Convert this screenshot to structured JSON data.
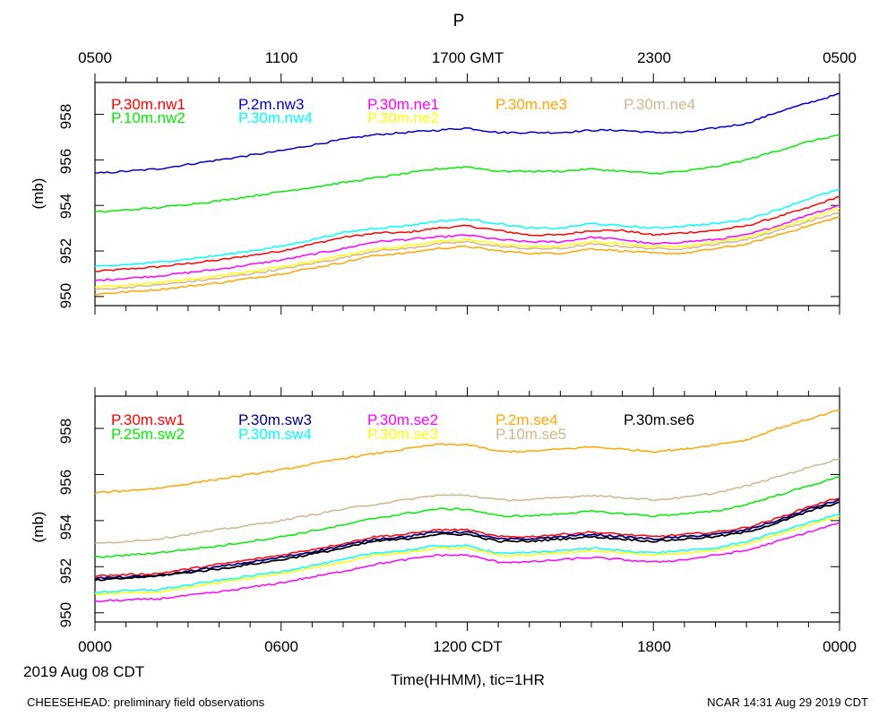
{
  "chart_data": {
    "type": "line",
    "title": "P",
    "top_time_axis": {
      "ticks": [
        "0500",
        "1100",
        "1700 GMT",
        "2300",
        "0500"
      ]
    },
    "bottom_time_axis": {
      "ticks": [
        "0000",
        "0600",
        "1200 CDT",
        "1800",
        "0000"
      ],
      "xlabel": "Time(HHMM), tic=1HR",
      "date_label": "2019 Aug 08 CDT"
    },
    "x_range_hours": [
      0,
      24
    ],
    "footer_left": "CHEESEHEAD: preliminary field observations",
    "footer_right": "NCAR 14:31 Aug 29 2019 CDT",
    "panels": [
      {
        "name": "top",
        "ylabel": "(mb)",
        "ylim": [
          949.6,
          959.4
        ],
        "yticks": [
          "950",
          "952",
          "954",
          "956",
          "958"
        ],
        "series": [
          {
            "name": "P.30m.nw1",
            "color": "#ff0000",
            "x": [
              0,
              2,
              4,
              6,
              8,
              9.2,
              10,
              11,
              12,
              13,
              14,
              15,
              16,
              17,
              18,
              19,
              20,
              21,
              22,
              23,
              24
            ],
            "values": [
              951.1,
              951.3,
              951.6,
              952.0,
              952.6,
              952.8,
              952.8,
              953.0,
              953.1,
              952.9,
              952.7,
              952.7,
              952.9,
              952.9,
              952.7,
              952.8,
              952.9,
              953.1,
              953.5,
              953.9,
              954.4
            ]
          },
          {
            "name": "P.2m.nw3",
            "color": "#0000cc",
            "x": [
              0,
              2,
              4,
              6,
              8,
              9,
              10,
              11,
              12,
              13,
              14,
              15,
              16,
              17,
              18,
              19,
              20,
              21,
              22,
              23,
              24
            ],
            "values": [
              955.4,
              955.6,
              956.0,
              956.4,
              956.9,
              957.1,
              957.2,
              957.3,
              957.4,
              957.2,
              957.2,
              957.2,
              957.3,
              957.3,
              957.2,
              957.2,
              957.4,
              957.6,
              958.1,
              958.5,
              958.9
            ]
          },
          {
            "name": "P.30m.ne1",
            "color": "#ff00ff",
            "x": [
              0,
              2,
              4,
              6,
              8,
              9,
              10,
              11,
              12,
              13,
              14,
              15,
              16,
              17,
              18,
              19,
              20,
              21,
              22,
              23,
              24
            ],
            "values": [
              950.7,
              950.9,
              951.2,
              951.6,
              952.1,
              952.4,
              952.5,
              952.6,
              952.7,
              952.5,
              952.4,
              952.4,
              952.6,
              952.5,
              952.3,
              952.4,
              952.5,
              952.7,
              953.1,
              953.6,
              954.0
            ]
          },
          {
            "name": "P.30m.ne3",
            "color": "#ffa500",
            "x": [
              0,
              2,
              4,
              6,
              8,
              9,
              10,
              11,
              12,
              13,
              14,
              15,
              16,
              17,
              18,
              19,
              20,
              21,
              22,
              23,
              24
            ],
            "values": [
              950.1,
              950.3,
              950.6,
              951.0,
              951.5,
              951.8,
              951.9,
              952.1,
              952.2,
              952.0,
              951.9,
              951.9,
              952.1,
              952.0,
              951.9,
              951.9,
              952.1,
              952.3,
              952.7,
              953.1,
              953.5
            ]
          },
          {
            "name": "P.30m.ne4",
            "color": "#d2b48c",
            "x": [
              0,
              2,
              4,
              6,
              8,
              9,
              10,
              11,
              12,
              13,
              14,
              15,
              16,
              17,
              18,
              19,
              20,
              21,
              22,
              23,
              24
            ],
            "values": [
              950.3,
              950.5,
              950.8,
              951.2,
              951.7,
              952.0,
              952.1,
              952.3,
              952.4,
              952.2,
              952.1,
              952.1,
              952.3,
              952.2,
              952.1,
              952.1,
              952.3,
              952.5,
              952.9,
              953.3,
              953.7
            ]
          },
          {
            "name": "P.10m.nw2",
            "color": "#00ee00",
            "x": [
              0,
              2,
              4,
              6,
              8,
              9,
              10,
              11,
              12,
              13,
              14,
              15,
              16,
              17,
              18,
              19,
              20,
              21,
              22,
              23,
              24
            ],
            "values": [
              953.7,
              953.9,
              954.2,
              954.6,
              955.0,
              955.2,
              955.4,
              955.6,
              955.7,
              955.5,
              955.5,
              955.5,
              955.6,
              955.5,
              955.4,
              955.5,
              955.7,
              956.0,
              956.4,
              956.8,
              957.1
            ]
          },
          {
            "name": "P.30m.nw4",
            "color": "#00ffff",
            "x": [
              0,
              2,
              4,
              6,
              8,
              9,
              10,
              11,
              12,
              13,
              14,
              15,
              16,
              17,
              18,
              19,
              20,
              21,
              22,
              23,
              24
            ],
            "values": [
              951.3,
              951.5,
              951.8,
              952.2,
              952.8,
              953.0,
              953.1,
              953.3,
              953.4,
              953.2,
              953.0,
              953.0,
              953.2,
              953.1,
              953.0,
              953.1,
              953.2,
              953.4,
              953.8,
              954.3,
              954.7
            ]
          },
          {
            "name": "P.30m.ne2",
            "color": "#ffff00",
            "x": [
              0,
              2,
              4,
              6,
              8,
              9,
              10,
              11,
              12,
              13,
              14,
              15,
              16,
              17,
              18,
              19,
              20,
              21,
              22,
              23,
              24
            ],
            "values": [
              950.4,
              950.6,
              950.9,
              951.3,
              951.8,
              952.1,
              952.2,
              952.4,
              952.5,
              952.3,
              952.2,
              952.2,
              952.4,
              952.3,
              952.2,
              952.2,
              952.4,
              952.6,
              953.0,
              953.4,
              953.9
            ]
          }
        ]
      },
      {
        "name": "bottom",
        "ylabel": "(mb)",
        "ylim": [
          949.6,
          959.4
        ],
        "yticks": [
          "950",
          "952",
          "954",
          "956",
          "958"
        ],
        "series": [
          {
            "name": "P.30m.sw1",
            "color": "#ff0000",
            "x": [
              0,
              2,
              4,
              6,
              8,
              9,
              10,
              11,
              12,
              13,
              14,
              15,
              16,
              17,
              18,
              19,
              20,
              21,
              22,
              23,
              24
            ],
            "values": [
              951.6,
              951.7,
              952.1,
              952.5,
              953.0,
              953.3,
              953.4,
              953.6,
              953.6,
              953.3,
              953.3,
              953.4,
              953.5,
              953.4,
              953.3,
              953.4,
              953.5,
              953.7,
              954.1,
              954.6,
              955.0
            ]
          },
          {
            "name": "P.30m.sw3",
            "color": "#000080",
            "x": [
              0,
              2,
              4,
              6,
              8,
              9,
              10,
              11,
              12,
              13,
              14,
              15,
              16,
              17,
              18,
              19,
              20,
              21,
              22,
              23,
              24
            ],
            "values": [
              951.5,
              951.6,
              952.0,
              952.4,
              952.9,
              953.2,
              953.3,
              953.5,
              953.5,
              953.2,
              953.2,
              953.3,
              953.4,
              953.3,
              953.2,
              953.3,
              953.4,
              953.6,
              954.0,
              954.5,
              954.9
            ]
          },
          {
            "name": "P.30m.se2",
            "color": "#ff00ff",
            "x": [
              0,
              2,
              4,
              6,
              8,
              9,
              10,
              11,
              12,
              13,
              14,
              15,
              16,
              17,
              18,
              19,
              20,
              21,
              22,
              23,
              24
            ],
            "values": [
              950.5,
              950.6,
              950.9,
              951.3,
              951.8,
              952.1,
              952.3,
              952.5,
              952.5,
              952.2,
              952.2,
              952.3,
              952.4,
              952.3,
              952.2,
              952.3,
              952.5,
              952.7,
              953.1,
              953.5,
              953.9
            ]
          },
          {
            "name": "P.2m.se4",
            "color": "#ffa500",
            "x": [
              0,
              2,
              4,
              6,
              8,
              9,
              10,
              11,
              12,
              13,
              14,
              15,
              16,
              17,
              18,
              19,
              20,
              21,
              22,
              23,
              24
            ],
            "values": [
              955.2,
              955.4,
              955.8,
              956.2,
              956.7,
              956.9,
              957.1,
              957.3,
              957.3,
              957.0,
              957.0,
              957.1,
              957.2,
              957.1,
              957.0,
              957.1,
              957.3,
              957.5,
              958.0,
              958.4,
              958.8
            ]
          },
          {
            "name": "P.30m.se6",
            "color": "#000000",
            "x": [
              0,
              2,
              4,
              6,
              8,
              9,
              10,
              11,
              12,
              13,
              14,
              15,
              16,
              17,
              18,
              19,
              20,
              21,
              22,
              23,
              24
            ],
            "values": [
              951.4,
              951.6,
              951.9,
              952.3,
              952.8,
              953.1,
              953.2,
              953.4,
              953.4,
              953.1,
              953.1,
              953.2,
              953.3,
              953.2,
              953.1,
              953.2,
              953.3,
              953.5,
              953.9,
              954.4,
              954.8
            ]
          },
          {
            "name": "P.25m.sw2",
            "color": "#00ee00",
            "x": [
              0,
              2,
              4,
              6,
              8,
              9,
              10,
              11,
              12,
              13,
              14,
              15,
              16,
              17,
              18,
              19,
              20,
              21,
              22,
              23,
              24
            ],
            "values": [
              952.4,
              952.6,
              952.9,
              953.3,
              953.8,
              954.1,
              954.3,
              954.5,
              954.5,
              954.2,
              954.2,
              954.3,
              954.4,
              954.3,
              954.2,
              954.3,
              954.4,
              954.7,
              955.1,
              955.5,
              955.9
            ]
          },
          {
            "name": "P.30m.sw4",
            "color": "#00ffff",
            "x": [
              0,
              2,
              4,
              6,
              8,
              9,
              10,
              11,
              12,
              13,
              14,
              15,
              16,
              17,
              18,
              19,
              20,
              21,
              22,
              23,
              24
            ],
            "values": [
              950.9,
              951.0,
              951.4,
              951.8,
              952.3,
              952.6,
              952.7,
              952.9,
              952.9,
              952.6,
              952.6,
              952.7,
              952.8,
              952.7,
              952.6,
              952.7,
              952.8,
              953.1,
              953.5,
              953.9,
              954.3
            ]
          },
          {
            "name": "P.30m.se3",
            "color": "#ffff00",
            "x": [
              0,
              2,
              4,
              6,
              8,
              9,
              10,
              11,
              12,
              13,
              14,
              15,
              16,
              17,
              18,
              19,
              20,
              21,
              22,
              23,
              24
            ],
            "values": [
              950.8,
              950.9,
              951.3,
              951.7,
              952.2,
              952.5,
              952.6,
              952.8,
              952.8,
              952.5,
              952.5,
              952.6,
              952.7,
              952.6,
              952.5,
              952.6,
              952.7,
              953.0,
              953.4,
              953.8,
              954.2
            ]
          },
          {
            "name": "P.10m.se5",
            "color": "#d2b48c",
            "x": [
              0,
              2,
              4,
              6,
              8,
              9,
              10,
              11,
              12,
              13,
              14,
              15,
              16,
              17,
              18,
              19,
              20,
              21,
              22,
              23,
              24
            ],
            "values": [
              953.0,
              953.2,
              953.6,
              954.0,
              954.5,
              954.7,
              954.9,
              955.1,
              955.1,
              954.9,
              954.9,
              955.0,
              955.1,
              955.0,
              954.9,
              955.0,
              955.2,
              955.5,
              955.9,
              956.3,
              956.7
            ]
          }
        ]
      }
    ]
  }
}
